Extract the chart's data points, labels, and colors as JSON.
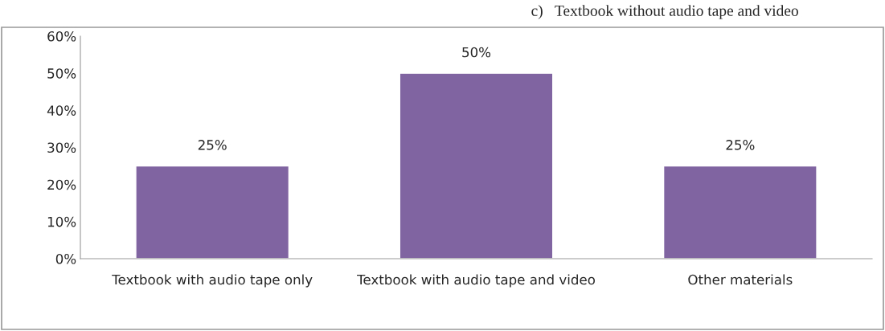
{
  "chart_data": {
    "type": "bar",
    "title": "c)   Textbook without audio tape and video",
    "categories": [
      "Textbook with audio tape only",
      "Textbook with audio tape and video",
      "Other materials"
    ],
    "values": [
      25,
      50,
      25
    ],
    "color": "#8064a2",
    "value_labels": [
      "25%",
      "50%",
      "25%"
    ],
    "ylim": [
      0,
      60
    ],
    "yticks": [
      {
        "value": 0,
        "label": "0%"
      },
      {
        "value": 10,
        "label": "10%"
      },
      {
        "value": 20,
        "label": "20%"
      },
      {
        "value": 30,
        "label": "30%"
      },
      {
        "value": 40,
        "label": "40%"
      },
      {
        "value": 50,
        "label": "50%"
      },
      {
        "value": 60,
        "label": "60%"
      }
    ],
    "grid": false,
    "legend": false
  }
}
